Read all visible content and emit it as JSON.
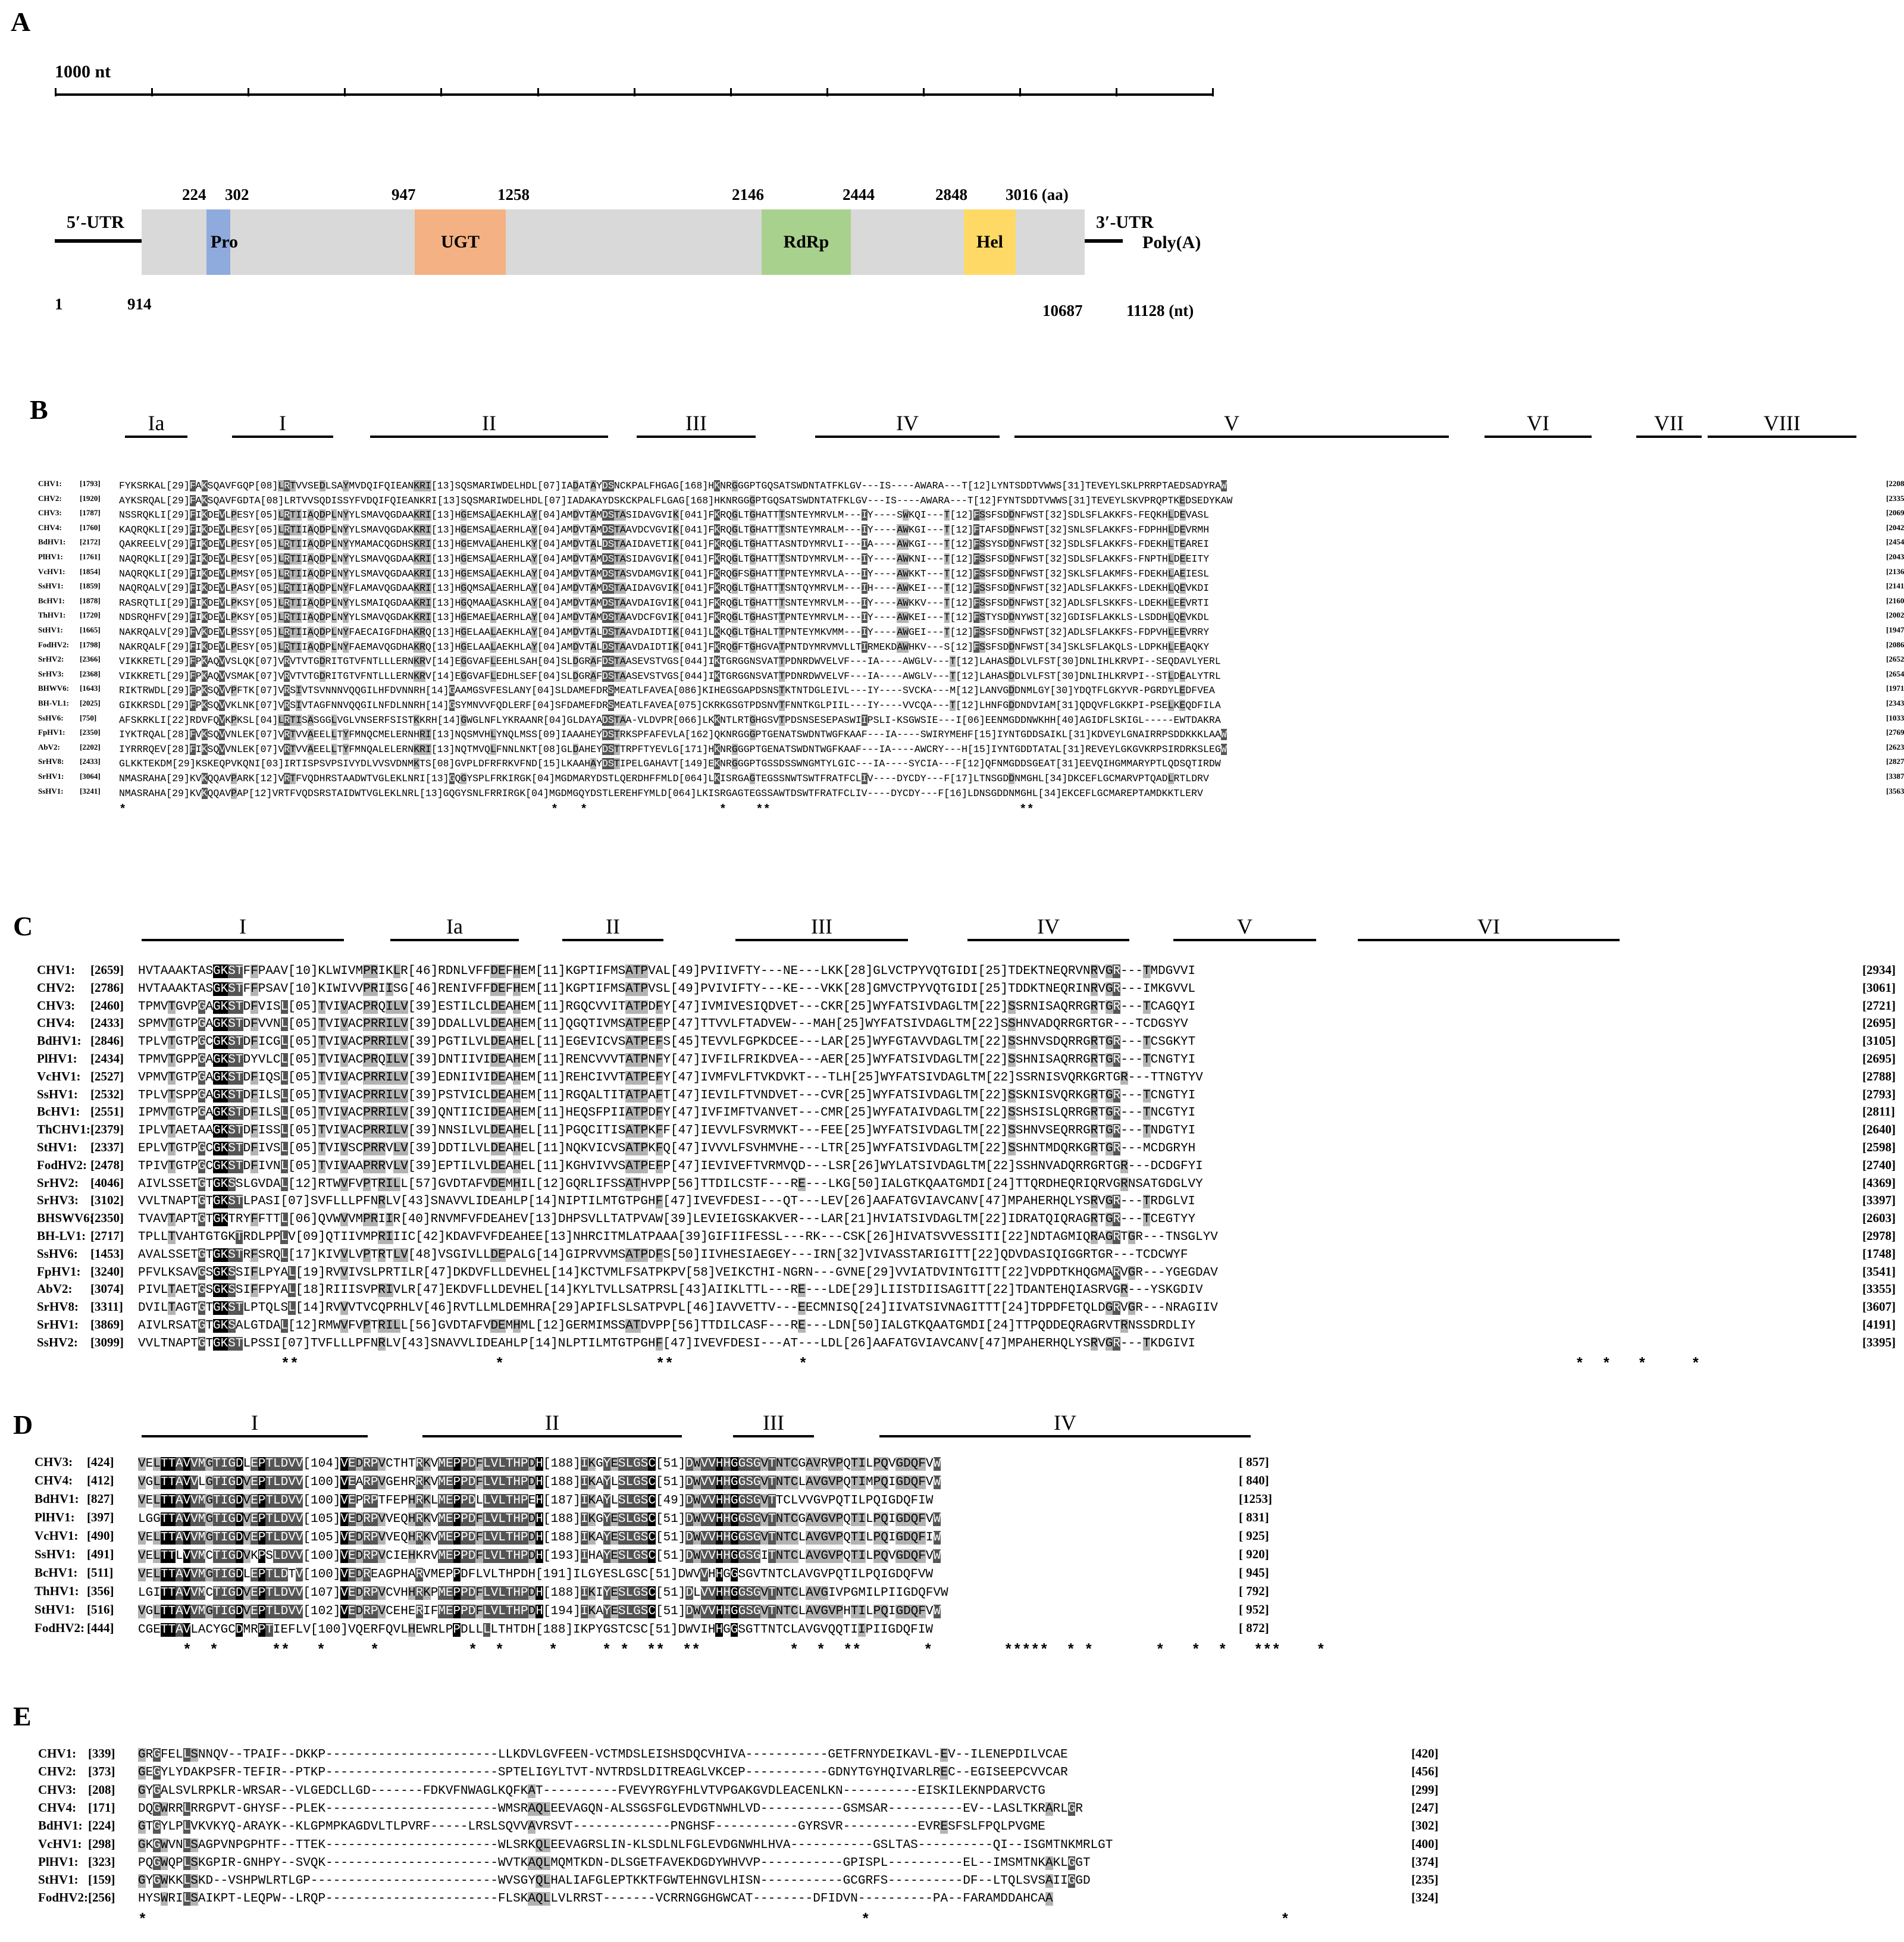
{
  "panel_labels": [
    "A",
    "B",
    "C",
    "D",
    "E"
  ],
  "panelA": {
    "scale_label": "1000 nt",
    "utr5": "5′-UTR",
    "utr3": "3′-UTR",
    "polyA": "Poly(A)",
    "aa_positions": [
      "224",
      "302",
      "947",
      "1258",
      "2146",
      "2444",
      "2848",
      "3016 (aa)"
    ],
    "nt_positions": [
      "1",
      "914",
      "10687",
      "11128 (nt)"
    ],
    "domains": [
      {
        "label": "Pro",
        "color": "#8faadc"
      },
      {
        "label": "UGT",
        "color": "#f4b183"
      },
      {
        "label": "RdRp",
        "color": "#a9d18e"
      },
      {
        "label": "Hel",
        "color": "#ffd966"
      }
    ],
    "genome_color": "#d9d9d9"
  },
  "panelB": {
    "motifs": [
      "Ia",
      "I",
      "II",
      "III",
      "IV",
      "V",
      "VI",
      "VII",
      "VIII"
    ],
    "rows": [
      {
        "name": "CHV1:",
        "start": "[1793]",
        "seq": "FYKSRKAL[29]FAKSQAVFGQP[08]LRTVVSEDLSAYMVDQIFQIEANKRI[13]SQSMARIWDELHDL[07]IADATAYDSNCKPALFHGAG[168]HKNRGGGPTGQSATSWDNTATFKLGV---IS----AWARA---T[12]LYNTSDDTVWWS[31]TEVEYLSKLPRRPTAEDSADYRAW",
        "end": "[2208]"
      },
      {
        "name": "CHV2:",
        "start": "[1920]",
        "seq": "AYKSRQAL[29]FAKSQAVFGDTA[08]LRTVVSQDISSYFVDQIFQIEANKRI[13]SQSMARIWDELHDL[07]IADAKAYDSKCKPALFLGAG[168]HKNRGGGPTGQSATSWDNTATFKLGV---IS----AWARA---T[12]FYNTSDDTVWWS[31]TEVEYLSKVPRQPTKEDSEDYKAW",
        "end": "[2335]"
      },
      {
        "name": "CHV3:",
        "start": "[1787]",
        "seq": "NSSRQKLI[29]FIKDEVLPESY[05]LRTIIAQDPLNYYLSMAVQGDAAKRI[13]HGEMSALAEKHLAY[04]AMDVTAMDSTASIDAVGVIK[041]FKRQGLTGHATTTSNTEYMRVLM---IY----SWKQI---T[12]FSSFSDDNFWST[32]SDLSFLAKKFS-FEQKHLDEVASL",
        "end": "[2069]"
      },
      {
        "name": "CHV4:",
        "start": "[1760]",
        "seq": "KAQRQKLI[29]FIKDEVLPESY[05]LRTIIAQDPLNYYLSMAVQGDAKKRI[13]HGEMSALAERHLAY[04]AMDVTAMDSTAAVDCVGVIK[041]FKRQGLTGHATTTSNTEYMRALM---IY----AWKGI---T[12]FTAFSDDNFWST[32]SNLSFLAKKFS-FDPHHLDEVRMH",
        "end": "[2042]"
      },
      {
        "name": "BdHV1:",
        "start": "[2172]",
        "seq": "QAKREELV[29]FIKDEVLPESY[05]LRTIIAQDPLNYYMAMACQGDHSKRI[13]HGEMVALAHEHLKY[04]AMDVTALDSTAAIDAVETIK[041]FKRQGLTGHATTASNTDYMRVLI---IA----AWKGI---T[12]FSSYSDDNFWST[32]SDLSFLAKKFS-FDEKHLTEAREI",
        "end": "[2454]"
      },
      {
        "name": "PlHV1:",
        "start": "[1761]",
        "seq": "NAQRQKLI[29]FIKDEVLPESY[05]LRTIIAQDPLNYYLSMAVQGDAAKRI[13]HGEMSALAERHLAY[04]AMDVTAMDSTASIDAVGVIK[041]FKRQGLTGHATTTSNTDYMRVLM---IY----AWKNI---T[12]FSSFSDDNFWST[32]SDLSFLAKKFS-FNPTHLDEEITY",
        "end": "[2043]"
      },
      {
        "name": "VcHV1:",
        "start": "[1854]",
        "seq": "NAQRQKLI[29]FIKDEVLPMSY[05]LRTIIAQDPLNYYLSMAVQGDAAKRI[13]HGEMSALAEKHLAY[04]AMDVTAMDSTASVDAMGVIK[041]FKRQGFSGHATTTPNTEYMRVLA---IY----AWKKT---T[12]FSSFSDDNFWST[32]SKLSFLAKMFS-FDEKHLAEIESL",
        "end": "[2136]"
      },
      {
        "name": "SsHV1:",
        "start": "[1859]",
        "seq": "NAQRQALV[29]FIKDEVLPASY[05]LRTIIAQDPLNYFLAMAVQGDAAKRI[13]HGQMSALAERHLAY[04]AMDVTAMDSTAAIDAVGVIK[041]FKRQGLTGHATTTSNTQYMRVLM---IH----AWKEI---T[12]FSSFSDDNFWST[32]ADLSFLAKKFS-LDEKHLQEVKDI",
        "end": "[2141]"
      },
      {
        "name": "BcHV1:",
        "start": "[1878]",
        "seq": "RASRQTLI[29]FIKDEVLPKSY[05]LRTIIAQDPLNYYLSMAIQGDAAKRI[13]HGQMAALASKHLAY[04]AMDVTAMDSTAAVDAIGVIK[041]FKRQGLTGHATTTSNTEYMRVLM---IY----AWKKV---T[12]FSSFSDDNFWST[32]ADLSFLSKKFS-LDEKHLEEVRTI",
        "end": "[2160]"
      },
      {
        "name": "ThHV1:",
        "start": "[1720]",
        "seq": "NDSRQHFV[29]FIKDEVLPKSY[05]LRTIIAQDPLNYYLSMAVQGDAKKRI[13]HGEMAELAERHLAY[04]AMDVTAMDSTAAVDCFGVIK[041]FKRQGLTGHASTTPNTEYMRVLM---IY----AWKEI---T[12]FSTYSDDNYWST[32]GDISFLAKKLS-LSDDHLQEVKDL",
        "end": "[2002]"
      },
      {
        "name": "StHV1:",
        "start": "[1665]",
        "seq": "NAKRQALV[29]FVKDEVLPSSY[05]LRTIIAQDPLNYFAECAIGFDHAKRQ[13]HGELAALAEKHLAY[04]AMDVTALDSTAAVDAIDTIK[041]LKKQGLTGHALTTPNTEYMKVMM---IY----AWGEI---T[12]FSSFSDDNFWST[32]ADLSFLAKKFS-FDPVHLEEVRRY",
        "end": "[1947]"
      },
      {
        "name": "FodHV2:",
        "start": "[1798]",
        "seq": "NAKRQALF[29]FIKDEVLPESY[05]LRTIIAQDPLNYFAEMAVQGDHAKRQ[13]HGELAALAEKHLAY[04]AMDVTALDSTAAVDAIDTIK[041]FKRQGFTGHGVATPNTDYMRVMVLLTIRMEKDAWHKV---S[12]FSSFSDDNFWST[34]SKLSFLAKQLS-LDPKHLEEAQKY",
        "end": "[2086]"
      },
      {
        "name": "SrHV2:",
        "start": "[2366]",
        "seq": "VIKKRETL[29]FPKAQVVSLQK[07]VRVTVTGDRITGTVFNTLLLERNKRV[14]EGGVAFLEEHLSAH[04]SLDGRAFDSTAASEVSTVGS[044]IKTGRGGNSVATTPDNRDWVELVF---IA----AWGLV---T[12]LAHASDDLVLFST[30]DNLIHLKRVPI--SEQDAVLYERL",
        "end": "[2652]"
      },
      {
        "name": "SrHV3:",
        "start": "[2368]",
        "seq": "VIKKRETL[29]FPKAQVVSMAK[07]VRVTVTGDRITGTVFNTLLLERNKRV[14]EGGVAFLEDHLSEF[04]SLDGRAFDSTAASEVSTVGS[044]IKTGRGGNSVATTPDNRDWVELVF---IA----AWGLV---T[12]LAHASDDLVLFST[30]DNLIHLKRVPI--STLDEALYTRL",
        "end": "[2654]"
      },
      {
        "name": "BHWV6:",
        "start": "[1643]",
        "seq": "RIKTRWDL[29]FPKSQVVPFTK[07]VRSIVTSVNNNVQQGILHFDVNNRH[14]GAAMGSVFESLANY[04]SLDAMEFDRSMEATLFAVEA[086]KIHEGSGAPDSNSTKTNTDGLEIVL---IY----SVCKA---M[12]LANVGDDNMLGY[30]YDQTFLGKYVR-PGRDYLEDFVEA",
        "end": "[1971]"
      },
      {
        "name": "BH-VL1:",
        "start": "[2025]",
        "seq": "GIKKRSDL[29]FPKSQVVKLNK[07]VRSIVTAGFNNVQQGILNFDLNNRH[14]GSYMNVVFQDLERF[04]SFDAMEFDRSMEATLFAVEA[075]CKRKGSGTPDSNVTFNNTKGLPIIL---IY----VVCQA---T[12]LHNFGDDNDVIAM[31]QDQVFLGKKPI-PSELKEQDFILA",
        "end": "[2343]"
      },
      {
        "name": "SsHV6:",
        "start": "[750]",
        "seq": "AFSKRKLI[22]RDVFQVKPKSL[04]LRTISASGGLVGLVNSERFSISTKKRH[14]GWGLNFLYKRAANR[04]GLDAYADSTAA-VLDVPR[066]LKKNTLRTGHGSVTPDSNSESEPASWIIPSLI-KSGWSIE---I[06]EENMGDDNWKHH[40]AGIDFLSKIGL-----EWTDAKRA",
        "end": "[1033]"
      },
      {
        "name": "FpHV1:",
        "start": "[2350]",
        "seq": "IYKTRQAL[28]FVKSQVVNLEK[07]VRTVVAEELLTYFMNQCMELERNHRI[13]NQSMVHLYNQLMSS[09]IAAAHEYDSTRKSPFAFEVLA[162]QKNRGGGPTGENATSWDNTWGFKAAF---IA----SWIRYMEHF[15]IYNTGDDSAIKL[31]KDVEYLGNAIRRPSDDKKKLAAW",
        "end": "[2769]"
      },
      {
        "name": "AbV2:",
        "start": "[2202]",
        "seq": "IYRRRQEV[28]FIKSQVVNLEK[07]VRTVVAEELLTYFMNQALELERNKRI[13]NQTMVQLFNNLNKT[08]GLDAHEYDSTTRPFTYEVLG[171]HKNRGGGPTGENATSWDNTWGFKAAF---IA----AWCRY---H[15]IYNTGDDTATAL[31]REVEYLGKGVKRPSIRDRKSLEGW",
        "end": "[2623]"
      },
      {
        "name": "SrHV8:",
        "start": "[2433]",
        "seq": "GLKKTEKDM[29]KSKEQPVKQNI[03]IRTISPSVPSIVYDLVVSVDNMKTS[08]GVPLDFRFRKVFND[15]LKAAHAYDSTIPELGAHAVT[149]EKNRGGGPTGSSDSSWNGMTYLGIC---IA----SYCIA---F[12]QFNMGDDSGEAT[31]EEVQIHGMMARYPTLQDSQTIRDW",
        "end": "[2827]"
      },
      {
        "name": "SrHV1:",
        "start": "[3064]",
        "seq": "NMASRAHA[29]KVKQQAVPARK[12]VRTFVQDHRSTAADWTVGLEKLNRI[13]GQGYSPLFRKIRGK[04]MGDMARYDSTLQERDHFFMLD[064]LKISRGAGTEGSSNWTSWTFRATFCLIV----DYCDY---F[17]LTNSGDDNMGHL[34]DKCEFLGCMARVPTQADLRTLDRV",
        "end": "[3387]"
      },
      {
        "name": "SsHV1:",
        "start": "[3241]",
        "seq": "NMASRAHA[29]KVKQQAVPAP[12]VRTFVQDSRSTAIDWTVGLEKLNRL[13]GQGYSNLFRRIRGK[04]MGDMGQYDSTLEREHFYMLD[064]LKISRGAGTEGSSAWTDSWTFRATFCLIV----DYCDY---F[16]LDNSGDDNMGHL[34]EKCEFLGCMAREPTAMDKKTLERV",
        "end": "[3563]"
      }
    ],
    "stars": "*                                                          *   *                  *    **                                  **"
  },
  "panelC": {
    "motifs": [
      "I",
      "Ia",
      "II",
      "III",
      "IV",
      "V",
      "VI"
    ],
    "rows": [
      {
        "name": "CHV1:",
        "start": "[2659]",
        "seq": "HVTAAAKTASGKSTFFPAAV[10]KLWIVMPRIKLR[46]RDNLVFFDEFHEM[11]KGPTIFMSATPVAL[49]PVIIVFTY---NE---LKK[28]GLVCTPYVQTGIDI[25]TDEKTNEQRVNRVGR---TMDGVVI",
        "end": "[2934]"
      },
      {
        "name": "CHV2:",
        "start": "[2786]",
        "seq": "HVTAAAKTASGKSTFFPSAV[10]KIWIVVPRIISG[46]RENIVFFDEFHEM[11]KGPTIFMSATPVSL[49]PVIVIFTY---KE---VKK[28]GMVCTPYVQTGIDI[25]TDDKTNEQRINRVGR---IMKGVVL",
        "end": "[3061]"
      },
      {
        "name": "CHV3:",
        "start": "[2460]",
        "seq": "TPMVTGVPGAGKSTDFVISL[05]TVIVACPRQILV[39]ESTILCLDEAHEM[11]RGQCVVITATPDFY[47]IVMIVESIQDVET---CKR[25]WYFATSIVDAGLTM[22]SSRNISAQRRGRTGR---TCAGQYI",
        "end": "[2721]"
      },
      {
        "name": "CHV4:",
        "start": "[2433]",
        "seq": "SPMVTGTPGAGKSTDFVVNL[05]TVIVACPRRILV[39]DDALLVLDEAHEM[11]QGQTIVMSATPEFP[47]TTVVLFTADVEW---MAH[25]WYFATSIVDAGLTM[22]SSHNVADQRRGRTGR---TCDGSYV",
        "end": "[2695]"
      },
      {
        "name": "BdHV1:",
        "start": "[2846]",
        "seq": "TPLVTGTPGCGKSTDFICGL[05]TVIVACPRRILV[39]PGTILVLDEAHEL[11]EGEVICVSATPEFS[45]TEVVLFGPKDCEE---LAR[25]WYFGTAVVDAGLTM[22]SSHNVSDQRRGRTGR---TCSGKYT",
        "end": "[3105]"
      },
      {
        "name": "PlHV1:",
        "start": "[2434]",
        "seq": "TPMVTGPPGAGKSTDYVLCL[05]TVIVACPRQILV[39]DNTIIVIDEAHEM[11]RENCVVVTATPNFY[47]IVFILFRIKDVEA---AER[25]WYFATSIVDAGLTM[22]SSHNISAQRRGRTGR---TCNGTYI",
        "end": "[2695]"
      },
      {
        "name": "VcHV1:",
        "start": "[2527]",
        "seq": "VPMVTGTPGAGKSTDFIQSL[05]TVIVACPRRILV[39]EDNIIVIDEAHEM[11]REHCIVVTATPEFY[47]IVMFVLFTVKDVKT---TLH[25]WYFATSIVDAGLTM[22]SSRNISVQRKGRTGR---TTNGTYV",
        "end": "[2788]"
      },
      {
        "name": "SsHV1:",
        "start": "[2532]",
        "seq": "TPLVTSPPGAGKSTDFILSL[05]TVIVACPRRILV[39]PSTVICLDEAHEM[11]RGQALTITATPAFT[47]IEVILFTVNDVET---CVR[25]WYFATSIVDAGLTM[22]SSKNISVQRKGRTGR---TCNGTYI",
        "end": "[2793]"
      },
      {
        "name": "BcHV1:",
        "start": "[2551]",
        "seq": "IPMVTGTPGAGKSTDFILSL[05]TVIVACPRRILV[39]QNTIICIDEAHEM[11]HEQSFPIIATPDFY[47]IVFIMFTVANVET---CMR[25]WYFATAIVDAGLTM[22]SSHSISLQRRGRTGR---TNCGTYI",
        "end": "[2811]"
      },
      {
        "name": "ThCHV1:",
        "start": "[2379]",
        "seq": "IPLVTAETAAGKSTDFISSL[05]TVIVACPRRILV[39]NNSILVLDEAHEL[11]PGQCITISATPKFF[47]IEVVLFSVRMVKT---FEE[25]WYFATSIVDAGLTM[22]SSHNVSEQRRGRTGR---TNDGTYI",
        "end": "[2640]"
      },
      {
        "name": "StHV1:",
        "start": "[2337]",
        "seq": "EPLVTGTPGCGKSTDFIVSL[05]TVIVSCPRRVLV[39]DDTILVLDEAHEL[11]NQKVICVSATPKFQ[47]IVVVLFSVHMVHE---LTR[25]WYFATSIVDAGLTM[22]SSHNTMDQRKGRTGR---MCDGRYH",
        "end": "[2598]"
      },
      {
        "name": "FodHV2:",
        "start": "[2478]",
        "seq": "TPIVTGTPGCGKSTDFIVNL[05]TVIVAAPRRVLV[39]EPTILVLDEAHEL[11]KGHVIVVSATPEFP[47]IEVIVEFTVRMVQD---LSR[26]WYLATSIVDAGLTM[22]SSHNVADQRRGRTGR---DCDGFYI",
        "end": "[2740]"
      },
      {
        "name": "SrHV2:",
        "start": "[4046]",
        "seq": "AIVLSSETGTGKSSLGVDAL[12]RTWVFVPTRILL[57]GVDTAFVDEMHIL[12]GQRLIFSSATHVPP[56]TTDILCSTF---RE---LKG[50]IALGTKQAATGMDI[24]TTQRDHEQRIQRVGRNSATGDGLVY",
        "end": "[4369]"
      },
      {
        "name": "SrHV3:",
        "start": "[3102]",
        "seq": "VVLTNAPTGTGKSTLPASI[07]SVFLLLPFNRLV[43]SNAVVLIDEAHLP[14]NIPTILMTGTPGHF[47]IVEVFDESI---QT---LEV[26]AAFATGVIAVCANV[47]MPAHERHQLYSRVGR---TRDGLVI",
        "end": "[3397]"
      },
      {
        "name": "BHSWV6:",
        "start": "[2350]",
        "seq": "TVAVTAPTGTGKTRYFFTTL[06]QVWVVMPRIIR[40]RNVMFVFDEAHEV[13]DHPSVLLTATPVAW[39]LEVIEIGSKAKVER---LAR[21]HVIATSIVDAGLTM[22]IDRATQIQRAGRTGR---TCEGTYY",
        "end": "[2603]"
      },
      {
        "name": "BH-LV1:",
        "start": "[2717]",
        "seq": "TPLLTVAHTGTGKTRDLPPLV[09]QTIIVMPRIIIC[42]KDAVFVFDEAHEE[13]NHRCITMLATPAAA[39]GIFIIFESSL---RK---CSK[26]HIVATSVVESSITI[22]NDTAGMIQRAGRTGR---TNSGLYV",
        "end": "[2978]"
      },
      {
        "name": "SsHV6:",
        "start": "[1453]",
        "seq": "AVALSSETGTGKSTRFSRQL[17]KIVVLVPTRTLV[48]VSGIVLLDEPALG[14]GIPRVVMSATPDFS[50]IIVHESIAEGEY---IRN[32]VIVASSTARIGITT[22]QDVDASIQIGGRTGR---TCDCWYF",
        "end": "[1748]"
      },
      {
        "name": "FpHV1:",
        "start": "[3240]",
        "seq": "PFVLKSAVGSGKSSIFLPYAL[19]RVVIVSLPRTILR[47]DKDVFLLDEVHEL[14]KCTVMLFSATPKPV[58]VEIKCTHI-NGRN---GVNE[29]VVIATDVINTGITT[22]VDPDTKHQGMARVGR---YGEGDAV",
        "end": "[3541]"
      },
      {
        "name": "AbV2:",
        "start": "[3074]",
        "seq": "PIVLTAETGSGKSSIFFPYAL[18]RIIISVPRIVLR[47]EKDVFLLDEVHEL[14]KYLTVLLSATPRSL[43]AIIKLTTL---RE---LDE[29]LIISTDIISAGITT[22]TDANTEHQIASRVGR---YSKGDIV",
        "end": "[3355]"
      },
      {
        "name": "SrHV8:",
        "start": "[3311]",
        "seq": "DVILTAGTGTGKSTLPTQLSL[14]RVVVTVCQPRHLV[46]RVTLLMLDEMHRA[29]APIFLSLSATPVPL[46]IAVVETTV---EECMNISQ[24]IIVATSIVNAGITTT[24]TDPDFETQLDGRVGR---NRAGIIV",
        "end": "[3607]"
      },
      {
        "name": "SrHV1:",
        "start": "[3869]",
        "seq": "AIVLRSATGTGKSALGTDAL[12]RMWVFVPTRILL[56]GVDTAFVDEMHML[12]GERMIMSSATDVPP[56]TTDILCASF---RE---LDN[50]IALGTKQAATGMDI[24]TTPQDDEQRAGRVTRNSSDRDLIY",
        "end": "[4191]"
      },
      {
        "name": "SsHV2:",
        "start": "[3099]",
        "seq": "VVLTNAPTGTGKSTLPSSI[07]TVFLLLPFNRLV[43]SNAVVLIDEAHLP[14]NLPTILMTGTPGHF[47]IVEVFDESI---AT---LDL[26]AAFATGVIAVCANV[47]MPAHERHQLYSRVGR---TKDGIVI",
        "end": "[3395]"
      }
    ],
    "stars": "                **                      *                 **              *                                                                                      *  *   *     *"
  },
  "panelD": {
    "motifs": [
      "I",
      "II",
      "III",
      "IV"
    ],
    "rows": [
      {
        "name": "CHV3:",
        "start": "[424]",
        "seq": "VELTTAVVMGTIGDLEPTLDVV[104]VEDRPVCTHTRKVMEPPDFLVLTHPDH[188]IKGYESLGSC[51]DWVVHHGGSGVTNTCGAVRVPQTILPQVGDQFVW",
        "end": "[ 857]"
      },
      {
        "name": "CHV4:",
        "start": "[412]",
        "seq": "VGLTTAVVLGTIGDVEPTLDVV[100]VEARPVGEHRRKVMEPPDFLVLTHPDH[188]IKAYLSLGSC[51]DWVVHHGGSGVTNTCLAVGVPQTIMPQIGDQFVW",
        "end": "[ 840]"
      },
      {
        "name": "BdHV1:",
        "start": "[827]",
        "seq": "VELTTAVVMGTIGDVEPTLDVV[100]VEPRPTFEPHRKLMEPPDLLVLTHPEH[187]IKAYLSLGSC[49]DWVVHHGGSGVTTCLVVGVPQTILPQIGDQFIW",
        "end": "[1253]"
      },
      {
        "name": "PlHV1:",
        "start": "[397]",
        "seq": "LGGTTAVVMGTIGDVEPTLDVV[105]VEDRPVVEQHRKVMEPPDFLVLTHPDH[188]IKGYESLGSC[51]DWVVHHGGSGVTNTCGAVGVPQTILPQIGDQFVW",
        "end": "[ 831]"
      },
      {
        "name": "VcHV1:",
        "start": "[490]",
        "seq": "VELTTAVVMGTIGDVEPTLDVV[105]VEDRPVVEQHRKVMEPPDFLVLTHPDH[188]IKAYESLGSC[51]DWVVHHGGSGVTNTCLAVGVPQTILPQIGDQFIW",
        "end": "[ 925]"
      },
      {
        "name": "SsHV1:",
        "start": "[491]",
        "seq": "VELTTLVVMCTIGDVKPSLDVV[100]VEDRPVCIEHKRVMEPPDFLVLTHPDH[193]IHAYESLGSC[51]DWVVHHGGSGITNTCLAVGVPQTILPQVGDQFVW",
        "end": "[ 920]"
      },
      {
        "name": "BcHV1:",
        "start": "[511]",
        "seq": "VELTTAVVMGTIGDLEPTLDTV[100]VEDREAGPHARVMEPPDFLVLTHPDH[191]ILGYESLGSC[51]DWVVHHGGSGVTNTCLAVGVPQTILPQIGDQFVW",
        "end": "[ 945]"
      },
      {
        "name": "ThHV1:",
        "start": "[356]",
        "seq": "LGITTAVVMCTIGDVEPTLDVV[107]VEDRPVCVHHRKPMEPPDFLVLTHPDH[188]IKIYESLGSC[51]DLVVHHGGSGVTNTCLAVGIVPGMILPIIGDQFVW",
        "end": "[ 792]"
      },
      {
        "name": "StHV1:",
        "start": "[516]",
        "seq": "VGLTTAVVMGTIGDVEPTLDVV[102]VEDRPVCEHERIFMEPPDFLVLTHPDH[194]IKAYESLGSC[51]DWVVHHGGSGVTNTCLAVGVPHTILPQIGDQFVW",
        "end": "[ 952]"
      },
      {
        "name": "FodHV2:",
        "start": "[444]",
        "seq": "CGETTAVLACYGCDMRPTIEFLV[100]VQERFQVLHEWRLPPDLLLLTHTDH[188]IKPYGSTCSC[51]DWVIHHGGSGTTNTCLAVGVQQTIIPIIGDQFIW",
        "end": "[ 872]"
      }
    ],
    "stars": "     *  *      **   *     *          *  *     *     * *  **  **          *  *  **       *        *****  * *       *   *  *   ***    *"
  },
  "panelE": {
    "rows": [
      {
        "name": "CHV1:",
        "start": "[339]",
        "seq": "GRGFELLSNNQV--TPAIF--DKKP-----------------------LLKDVLGVFEEN-VCTMDSLEISHSDQCVHIVA-----------GETFRNYDEIKAVL-EV--ILENEPDILVCAE",
        "end": "[420]"
      },
      {
        "name": "CHV2:",
        "start": "[373]",
        "seq": "GEGYLYDAKPSFR-TEFIR--PTKP-----------------------SPTELIGYLTVT-NVTRDSLDITREAGLVKCEP-----------GDNYTGYHQIVARLREC--EGISEEPCVVCAR",
        "end": "[456]"
      },
      {
        "name": "CHV3:",
        "start": "[208]",
        "seq": "GYGALSVLRPKLR-WRSAR--VLGEDCLLGD-------FDKVFNWAGLKQFKAT----------FVEVYRGYFHLVTVPGAKGVDLEACENLKN----------EISKILEKNPDARVCTG",
        "end": "[299]"
      },
      {
        "name": "CHV4:",
        "start": "[171]",
        "seq": "DQGWRRLRRGPVT-GHYSF--PLEK-----------------------WMSRAQLEEVAGQN-ALSSGSFGLEVDGTNWHLVD-----------GSMSAR----------EV--LASLTKRARLGR",
        "end": "[247]"
      },
      {
        "name": "BdHV1:",
        "start": "[224]",
        "seq": "GTGYLPLVKVKYQ-ARAYK--KLGPMPKAGDVLTLPVRF-----LRSLSQVVAVRSVT-------------PNGHSF-----------GYRSVR----------EVRESFSLFPQLPVGME",
        "end": "[302]"
      },
      {
        "name": "VcHV1:",
        "start": "[298]",
        "seq": "GKGWVNLSAGPVNPGPHTF--TTEK-----------------------WLSRKQLEEVAGRSLIN-KLSDLNLFGLEVDGNWHLHVA-----------GSLTAS----------QI--ISGMTNKMRLGT",
        "end": "[400]"
      },
      {
        "name": "PlHV1:",
        "start": "[323]",
        "seq": "PQGWQPLSKGPIR-GNHPY--SVQK-----------------------WVTKAQLMQMTKDN-DLSGETFAVEKDGDYWHVVP-----------GPISPL----------EL--IMSMTNKAKLGGT",
        "end": "[374]"
      },
      {
        "name": "StHV1:",
        "start": "[159]",
        "seq": "GYGWKKLSKD--VSHPWLRTLGP-------------------------WVSGYQLHALIAFGLEPTKKTFGWTEHNGVLHISN-----------GCGRFS----------DF--LTQLSVSAIIGGD",
        "end": "[235]"
      },
      {
        "name": "FodHV2:",
        "start": "[256]",
        "seq": "HYSWRILSAIKPT-LEQPW--LRQP-----------------------FLSKAQLLVLRRST-------VCRRNGGHGWCAT--------DFIDVN----------PA--FARAMDDAHCAA",
        "end": "[324]"
      }
    ],
    "stars": "*                                                                                *                                              *"
  }
}
